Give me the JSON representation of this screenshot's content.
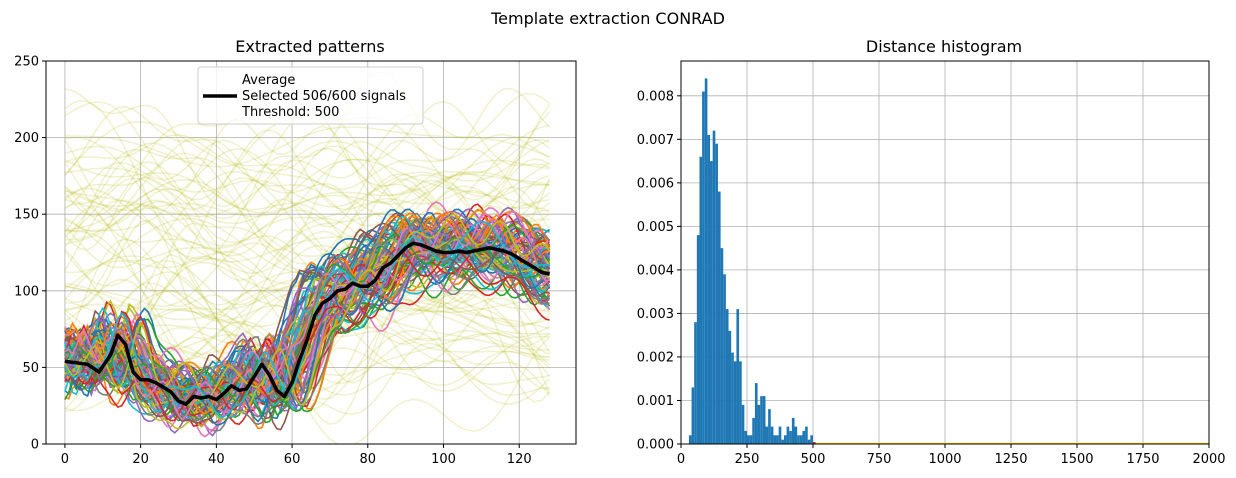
{
  "figure": {
    "suptitle": "Template extraction CONRAD"
  },
  "chart_data": [
    {
      "type": "line",
      "title": "Extracted patterns",
      "xlabel": "",
      "ylabel": "",
      "xlim": [
        -5,
        135
      ],
      "ylim": [
        0,
        250
      ],
      "xticks": [
        0,
        20,
        40,
        60,
        80,
        100,
        120
      ],
      "yticks": [
        0,
        50,
        100,
        150,
        200,
        250
      ],
      "grid": true,
      "legend": {
        "placement": "top-center",
        "entries": [
          "Average",
          "Selected 506/600 signals",
          "Threshold: 500"
        ]
      },
      "background_signals": {
        "count": 94,
        "color": "#bcbd22",
        "description_value_range": [
          0,
          250
        ]
      },
      "selected_signals": {
        "count": 506,
        "shape": "low ~40 for x 0-60, rising sharply at x 60-70 to ~125 for x 80-128"
      },
      "series": [
        {
          "name": "Average",
          "color": "#000000",
          "x": [
            0,
            3,
            6,
            9,
            12,
            14,
            16,
            18,
            20,
            22,
            24,
            26,
            28,
            30,
            32,
            34,
            36,
            38,
            40,
            42,
            44,
            46,
            48,
            50,
            52,
            54,
            56,
            58,
            60,
            62,
            64,
            66,
            68,
            70,
            72,
            74,
            76,
            78,
            80,
            82,
            84,
            86,
            88,
            90,
            92,
            94,
            96,
            98,
            100,
            102,
            104,
            106,
            108,
            110,
            112,
            114,
            116,
            118,
            120,
            122,
            124,
            126,
            128
          ],
          "y": [
            54,
            53,
            52,
            47,
            58,
            71,
            65,
            47,
            42,
            42,
            40,
            37,
            34,
            28,
            26,
            31,
            30,
            31,
            29,
            33,
            38,
            35,
            36,
            44,
            52,
            45,
            35,
            31,
            40,
            55,
            68,
            84,
            92,
            95,
            100,
            101,
            105,
            103,
            103,
            107,
            115,
            118,
            123,
            128,
            131,
            130,
            128,
            126,
            125,
            125,
            126,
            125,
            126,
            127,
            128,
            127,
            126,
            124,
            121,
            118,
            115,
            112,
            111
          ]
        }
      ]
    },
    {
      "type": "bar",
      "title": "Distance histogram",
      "xlabel": "",
      "ylabel": "",
      "xlim": [
        0,
        2000
      ],
      "ylim": [
        0,
        0.0088
      ],
      "xticks": [
        0,
        250,
        500,
        750,
        1000,
        1250,
        1500,
        1750,
        2000
      ],
      "yticks": [
        "0.000",
        "0.001",
        "0.002",
        "0.003",
        "0.004",
        "0.005",
        "0.006",
        "0.007",
        "0.008"
      ],
      "ytick_values": [
        0,
        0.001,
        0.002,
        0.003,
        0.004,
        0.005,
        0.006,
        0.007,
        0.008
      ],
      "grid": true,
      "bin_width": 10,
      "bins_start": [
        30,
        40,
        50,
        60,
        70,
        80,
        90,
        100,
        110,
        120,
        130,
        140,
        150,
        160,
        170,
        180,
        190,
        200,
        210,
        220,
        230,
        240,
        250,
        260,
        270,
        280,
        290,
        300,
        310,
        320,
        330,
        340,
        350,
        360,
        370,
        380,
        390,
        400,
        410,
        420,
        430,
        440,
        450,
        460,
        470,
        480,
        490
      ],
      "values": [
        0.0002,
        0.0013,
        0.0028,
        0.0048,
        0.0066,
        0.0081,
        0.0084,
        0.0071,
        0.0065,
        0.0072,
        0.0069,
        0.0058,
        0.0045,
        0.0039,
        0.0031,
        0.0026,
        0.0021,
        0.0019,
        0.0031,
        0.0019,
        0.0009,
        0.0003,
        0.0002,
        0.0002,
        0.0006,
        0.0014,
        0.0009,
        0.0011,
        0.0011,
        0.0004,
        0.0008,
        0.0004,
        0.0002,
        0.0002,
        0.0004,
        0.0001,
        0.0002,
        0.0004,
        0.0003,
        0.0006,
        0.0004,
        0.0002,
        0.0002,
        0.0003,
        0.0004,
        0.0001,
        0.0002
      ],
      "bar_color": "#1f77b4",
      "rejected_marker": {
        "x": [
          500,
          505,
          510
        ],
        "color": "#d62728"
      },
      "tail_line": {
        "x": [
          510,
          2000
        ],
        "y": 0,
        "color": "#ffd700"
      }
    }
  ]
}
